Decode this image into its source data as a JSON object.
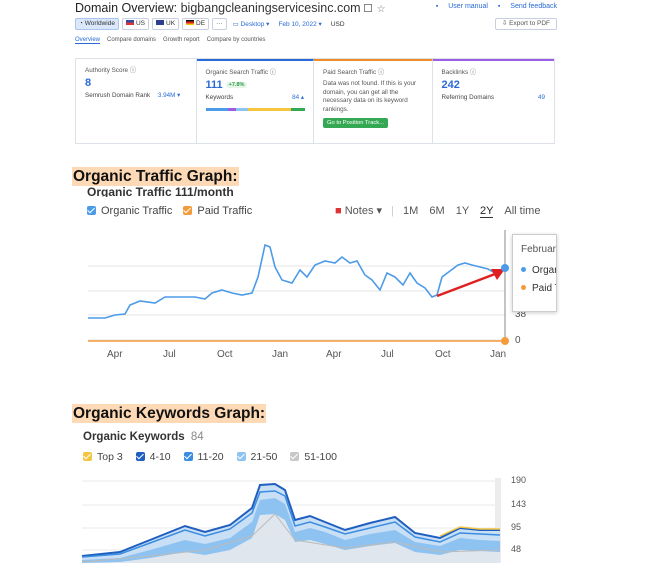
{
  "overview": {
    "title_prefix": "Domain Overview:",
    "domain": "bigbangcleaningservicesinc.com",
    "links": [
      "User manual",
      "Send feedback"
    ],
    "chips": {
      "worldwide": "Worldwide",
      "us": "US",
      "uk": "UK",
      "de": "DE",
      "more": "···",
      "device": "Desktop ▾",
      "date": "Feb 10, 2022 ▾",
      "currency": "USD"
    },
    "export": "Export to PDF",
    "tabs": [
      "Overview",
      "Compare domains",
      "Growth report",
      "Compare by countries"
    ],
    "cards": {
      "authority": {
        "label": "Authority Score",
        "value": "8",
        "sub_label": "Semrush Domain Rank",
        "sub_value": "3.94M ▾"
      },
      "organic": {
        "label": "Organic Search Traffic",
        "value": "111",
        "badge": "+7.8%",
        "sub_label": "Keywords",
        "sub_value": "84 ▴"
      },
      "paid": {
        "label": "Paid Search Traffic",
        "text": "Data was not found. If this is your domain, you can get all the necessary data on its keyword rankings.",
        "button": "Go to Position Track..."
      },
      "backlinks": {
        "label": "Backlinks",
        "value": "242",
        "sub_label": "Referring Domains",
        "sub_value": "49"
      }
    }
  },
  "traffic": {
    "heading": "Organic Traffic Graph:",
    "cut_title": "Organic Traffic 111/month",
    "legend": {
      "organic": "Organic Traffic",
      "paid": "Paid Traffic"
    },
    "notes": "Notes ▾",
    "ranges": [
      "1M",
      "6M",
      "1Y",
      "2Y",
      "All time"
    ],
    "active_range": "2Y",
    "x_ticks": [
      "Apr",
      "Jul",
      "Oct",
      "Jan",
      "Apr",
      "Jul",
      "Oct",
      "Jan"
    ],
    "y_ticks": [
      "38",
      "0"
    ],
    "tooltip": {
      "title": "February",
      "organic": "Organic Traffic",
      "paid": "Paid Traffic"
    },
    "colors": {
      "organic": "#4c9be8",
      "paid": "#f59b3c",
      "arrow": "#e02020"
    }
  },
  "keywords": {
    "heading": "Organic Keywords Graph:",
    "title": "Organic Keywords",
    "count": "84",
    "legend": [
      "Top 3",
      "4-10",
      "11-20",
      "21-50",
      "51-100"
    ],
    "legend_colors": [
      "#f5c542",
      "#1f5fbf",
      "#3a8de0",
      "#8ec2f0",
      "#c7c7c7"
    ],
    "y_ticks": [
      "190",
      "143",
      "95",
      "48"
    ]
  }
}
